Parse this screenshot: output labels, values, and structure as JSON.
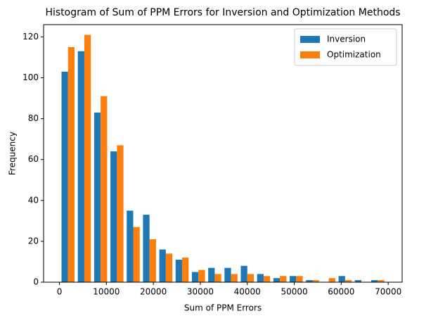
{
  "chart_data": {
    "type": "histogram",
    "title": "Histogram of Sum of PPM Errors for Inversion and Optimization Methods",
    "x_label": "Sum of PPM Errors",
    "y_label": "Frequency",
    "bins": [
      100,
      3570,
      7040,
      10510,
      13980,
      17450,
      20920,
      24390,
      27860,
      31330,
      34800,
      38270,
      41740,
      45210,
      48680,
      52150,
      55620,
      59090,
      62560,
      66030,
      69500
    ],
    "series": [
      {
        "name": "Inversion",
        "color": "#1f77b4",
        "values": [
          103,
          113,
          83,
          64,
          35,
          33,
          16,
          11,
          5,
          7,
          7,
          8,
          4,
          2,
          3,
          1,
          0,
          3,
          1,
          1
        ]
      },
      {
        "name": "Optimization",
        "color": "#ff7f0e",
        "values": [
          115,
          121,
          91,
          67,
          27,
          21,
          14,
          12,
          6,
          4,
          4,
          4,
          3,
          3,
          3,
          1,
          2,
          1,
          0,
          1
        ]
      }
    ],
    "xlim": [
      -3370,
      72970
    ],
    "ylim": [
      0,
      126
    ],
    "xticks": [
      0,
      10000,
      20000,
      30000,
      40000,
      50000,
      60000,
      70000
    ],
    "yticks": [
      0,
      20,
      40,
      60,
      80,
      100,
      120
    ],
    "legend": "upper right"
  }
}
